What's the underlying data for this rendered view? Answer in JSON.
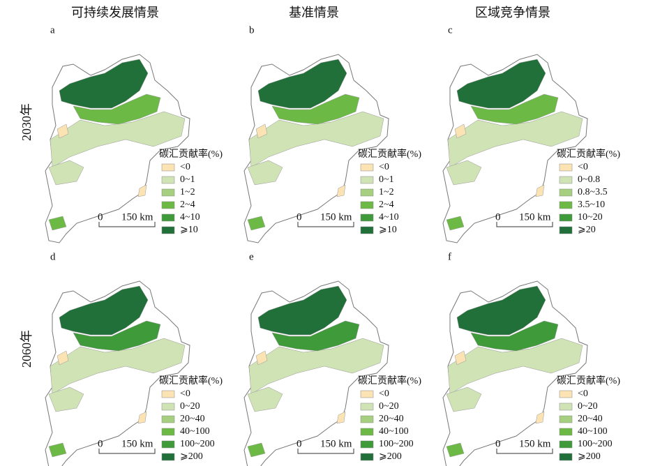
{
  "columns": [
    "可持续发展情景",
    "基准情景",
    "区域竞争情景"
  ],
  "rows": [
    "2030年",
    "2060年"
  ],
  "panels": [
    {
      "label": "a",
      "legend_title": "碳汇贡献率(%)",
      "legend_items": [
        "<0",
        "0~1",
        "1~2",
        "2~4",
        "4~10",
        "⩾10"
      ],
      "scale_zero": "0",
      "scale_length": "150 km"
    },
    {
      "label": "b",
      "legend_title": "碳汇贡献率(%)",
      "legend_items": [
        "<0",
        "0~1",
        "1~2",
        "2~4",
        "4~10",
        "⩾10"
      ],
      "scale_zero": "0",
      "scale_length": "150 km"
    },
    {
      "label": "c",
      "legend_title": "碳汇贡献率(%)",
      "legend_items": [
        "<0",
        "0~0.8",
        "0.8~3.5",
        "3.5~10",
        "10~20",
        "⩾20"
      ],
      "scale_zero": "0",
      "scale_length": "150 km"
    },
    {
      "label": "d",
      "legend_title": "碳汇贡献率(%)",
      "legend_items": [
        "<0",
        "0~20",
        "20~40",
        "40~100",
        "100~200",
        "⩾200"
      ],
      "scale_zero": "0",
      "scale_length": "150 km"
    },
    {
      "label": "e",
      "legend_title": "碳汇贡献率(%)",
      "legend_items": [
        "<0",
        "0~20",
        "20~40",
        "40~100",
        "100~200",
        "⩾200"
      ],
      "scale_zero": "0",
      "scale_length": "150 km"
    },
    {
      "label": "f",
      "legend_title": "碳汇贡献率(%)",
      "legend_items": [
        "<0",
        "0~20",
        "20~40",
        "40~100",
        "100~200",
        "⩾200"
      ],
      "scale_zero": "0",
      "scale_length": "150 km"
    }
  ]
}
